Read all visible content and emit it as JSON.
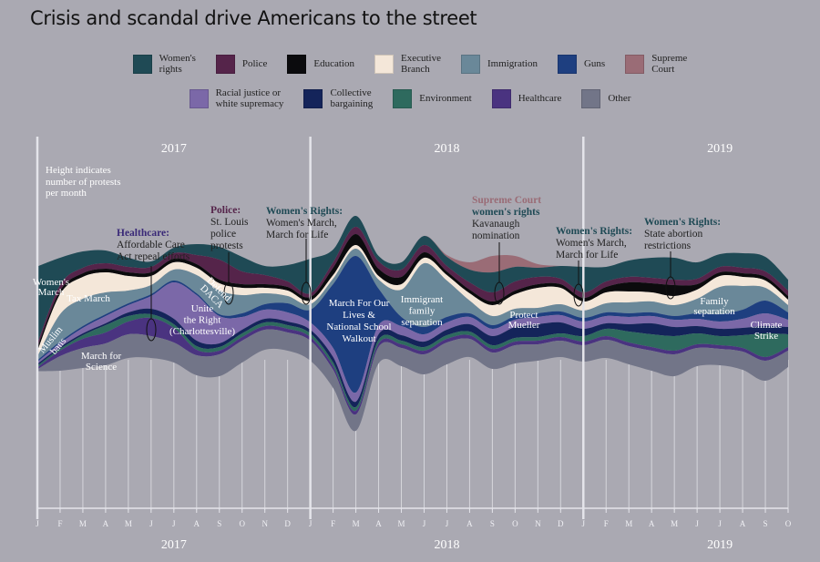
{
  "title": "Crisis and scandal drive Americans to the street",
  "legend": {
    "row1": [
      {
        "key": "womens_rights",
        "label": "Women's\nrights",
        "color": "#1f4a55"
      },
      {
        "key": "police",
        "label": "Police",
        "color": "#55244a"
      },
      {
        "key": "education",
        "label": "Education",
        "color": "#0b0b0d"
      },
      {
        "key": "executive",
        "label": "Executive\nBranch",
        "color": "#f4e7d9"
      },
      {
        "key": "immigration",
        "label": "Immigration",
        "color": "#6a8899"
      },
      {
        "key": "guns",
        "label": "Guns",
        "color": "#1e3f80"
      },
      {
        "key": "supreme_court",
        "label": "Supreme\nCourt",
        "color": "#9a6c76"
      }
    ],
    "row2": [
      {
        "key": "racial_justice",
        "label": "Racial justice or\nwhite supremacy",
        "color": "#7b68a8"
      },
      {
        "key": "collective",
        "label": "Collective\nbargaining",
        "color": "#14245a"
      },
      {
        "key": "environment",
        "label": "Environment",
        "color": "#2e6a5e"
      },
      {
        "key": "healthcare",
        "label": "Healthcare",
        "color": "#4a3380"
      },
      {
        "key": "other",
        "label": "Other",
        "color": "#727588"
      }
    ]
  },
  "notes": {
    "height": "Height indicates\nnumber of protests\nper month"
  },
  "annotations": [
    {
      "id": "healthcare",
      "head": "Healthcare:",
      "head_color": "#3a2a78",
      "text": "Affordable Care\nAct repeal efforts"
    },
    {
      "id": "police",
      "head": "Police:",
      "head_color": "#55244a",
      "text": "St. Louis\npolice\nprotests"
    },
    {
      "id": "wr2018",
      "head": "Women's Rights:",
      "head_color": "#1f4a55",
      "text": "Women's March,\nMarch for Life"
    },
    {
      "id": "scotus",
      "head": "Supreme Court",
      "head2": "women's rights",
      "head_color": "#9a6c76",
      "head2_color": "#1f4a55",
      "text": "Kavanaugh\nnomination"
    },
    {
      "id": "wr2019",
      "head": "Women's Rights:",
      "head_color": "#1f4a55",
      "text": "Women's March,\nMarch for Life"
    },
    {
      "id": "abortion",
      "head": "Women's Rights:",
      "head_color": "#1f4a55",
      "text": "State abortion\nrestrictions"
    }
  ],
  "stream_labels": {
    "womens_march": "Women's\nMarch",
    "tax_march": "Tax March",
    "muslim_bans": "Muslim\nbans",
    "march_science": "March for\nScience",
    "unite_right": "Unite\nthe Right\n(Charlottesville)",
    "defend_daca": "Defend\nDACA",
    "march_lives": "March For Our\nLives &\nNational School\nWalkout",
    "immigrant": "Immigrant\nfamily\nseparation",
    "mueller": "Protect\nMueller",
    "family_sep": "Family\nseparation",
    "climate": "Climate\nStrike"
  },
  "chart_data": {
    "type": "area",
    "subtype": "streamgraph",
    "title": "Crisis and scandal drive Americans to the street",
    "year_labels_top": [
      "2017",
      "2018",
      "2019"
    ],
    "year_labels_bottom": [
      "2017",
      "2018",
      "2019"
    ],
    "month_ticks": [
      "J",
      "F",
      "M",
      "A",
      "M",
      "J",
      "J",
      "A",
      "S",
      "O",
      "N",
      "D",
      "J",
      "F",
      "M",
      "A",
      "M",
      "J",
      "J",
      "A",
      "S",
      "O",
      "N",
      "D",
      "J",
      "F",
      "M",
      "A",
      "M",
      "J",
      "J",
      "A",
      "S",
      "O"
    ],
    "x": [
      "2017-01",
      "2017-02",
      "2017-03",
      "2017-04",
      "2017-05",
      "2017-06",
      "2017-07",
      "2017-08",
      "2017-09",
      "2017-10",
      "2017-11",
      "2017-12",
      "2018-01",
      "2018-02",
      "2018-03",
      "2018-04",
      "2018-05",
      "2018-06",
      "2018-07",
      "2018-08",
      "2018-09",
      "2018-10",
      "2018-11",
      "2018-12",
      "2019-01",
      "2019-02",
      "2019-03",
      "2019-04",
      "2019-05",
      "2019-06",
      "2019-07",
      "2019-08",
      "2019-09",
      "2019-10"
    ],
    "center": [
      350,
      345,
      340,
      338,
      338,
      340,
      335,
      340,
      342,
      340,
      338,
      338,
      340,
      350,
      355,
      340,
      345,
      335,
      340,
      340,
      343,
      340,
      343,
      342,
      345,
      343,
      343,
      345,
      348,
      345,
      340,
      342,
      350,
      355
    ],
    "series": [
      {
        "name": "Women's rights",
        "key": "womens_rights",
        "values": [
          85,
          30,
          18,
          14,
          10,
          6,
          6,
          12,
          14,
          16,
          10,
          18,
          38,
          14,
          12,
          6,
          8,
          10,
          10,
          14,
          22,
          16,
          10,
          14,
          28,
          16,
          18,
          22,
          24,
          18,
          14,
          16,
          16,
          12
        ]
      },
      {
        "name": "Police",
        "key": "police",
        "values": [
          4,
          6,
          6,
          6,
          6,
          6,
          6,
          10,
          22,
          14,
          10,
          6,
          4,
          6,
          8,
          8,
          8,
          8,
          6,
          8,
          10,
          10,
          8,
          6,
          6,
          6,
          6,
          6,
          6,
          6,
          6,
          6,
          6,
          6
        ]
      },
      {
        "name": "Education",
        "key": "education",
        "values": [
          4,
          4,
          4,
          4,
          4,
          4,
          4,
          4,
          4,
          4,
          4,
          4,
          4,
          8,
          12,
          8,
          8,
          6,
          4,
          4,
          4,
          4,
          4,
          4,
          4,
          6,
          10,
          10,
          12,
          6,
          4,
          4,
          4,
          4
        ]
      },
      {
        "name": "Executive Branch",
        "key": "executive",
        "values": [
          6,
          22,
          24,
          22,
          16,
          10,
          8,
          8,
          8,
          8,
          6,
          6,
          4,
          4,
          4,
          4,
          6,
          6,
          6,
          8,
          12,
          16,
          22,
          18,
          10,
          12,
          12,
          10,
          10,
          10,
          12,
          10,
          8,
          6
        ]
      },
      {
        "name": "Immigration",
        "key": "immigration",
        "values": [
          4,
          30,
          30,
          24,
          14,
          10,
          12,
          20,
          26,
          20,
          12,
          8,
          6,
          6,
          8,
          10,
          30,
          70,
          40,
          14,
          10,
          8,
          6,
          8,
          8,
          10,
          12,
          12,
          12,
          16,
          30,
          26,
          14,
          8
        ]
      },
      {
        "name": "Guns",
        "key": "guns",
        "values": [
          2,
          2,
          2,
          2,
          2,
          2,
          2,
          2,
          2,
          4,
          6,
          10,
          14,
          70,
          150,
          40,
          10,
          8,
          6,
          4,
          4,
          4,
          4,
          4,
          4,
          4,
          4,
          4,
          4,
          6,
          8,
          10,
          14,
          8
        ]
      },
      {
        "name": "Supreme Court",
        "key": "supreme_court",
        "values": [
          0,
          0,
          0,
          0,
          0,
          0,
          0,
          0,
          0,
          0,
          0,
          0,
          0,
          0,
          0,
          0,
          0,
          0,
          2,
          8,
          18,
          12,
          4,
          0,
          0,
          0,
          0,
          0,
          0,
          0,
          0,
          0,
          0,
          0
        ]
      },
      {
        "name": "Racial justice or white supremacy",
        "key": "racial_justice",
        "values": [
          2,
          4,
          6,
          8,
          8,
          14,
          40,
          50,
          30,
          14,
          10,
          10,
          8,
          10,
          10,
          10,
          10,
          8,
          8,
          8,
          8,
          8,
          8,
          8,
          8,
          8,
          8,
          8,
          8,
          8,
          8,
          10,
          14,
          8
        ]
      },
      {
        "name": "Collective bargaining",
        "key": "collective",
        "values": [
          2,
          2,
          2,
          2,
          4,
          6,
          6,
          6,
          4,
          4,
          4,
          4,
          4,
          6,
          6,
          6,
          6,
          6,
          6,
          8,
          10,
          12,
          14,
          12,
          8,
          6,
          8,
          12,
          10,
          8,
          8,
          8,
          8,
          8
        ]
      },
      {
        "name": "Environment",
        "key": "environment",
        "values": [
          2,
          2,
          4,
          8,
          6,
          4,
          4,
          4,
          4,
          4,
          4,
          4,
          4,
          4,
          4,
          4,
          4,
          4,
          4,
          4,
          4,
          4,
          4,
          4,
          6,
          8,
          12,
          14,
          16,
          12,
          10,
          14,
          26,
          14
        ]
      },
      {
        "name": "Healthcare",
        "key": "healthcare",
        "values": [
          2,
          6,
          10,
          12,
          14,
          20,
          16,
          6,
          4,
          4,
          4,
          4,
          4,
          4,
          4,
          4,
          4,
          4,
          4,
          4,
          4,
          4,
          4,
          4,
          4,
          4,
          4,
          4,
          4,
          4,
          4,
          4,
          4,
          4
        ]
      },
      {
        "name": "Other",
        "key": "other",
        "values": [
          2,
          16,
          22,
          24,
          26,
          24,
          22,
          22,
          24,
          24,
          22,
          20,
          22,
          20,
          18,
          18,
          20,
          22,
          24,
          20,
          18,
          20,
          18,
          18,
          18,
          20,
          20,
          22,
          24,
          20,
          18,
          20,
          22,
          18
        ]
      }
    ]
  }
}
